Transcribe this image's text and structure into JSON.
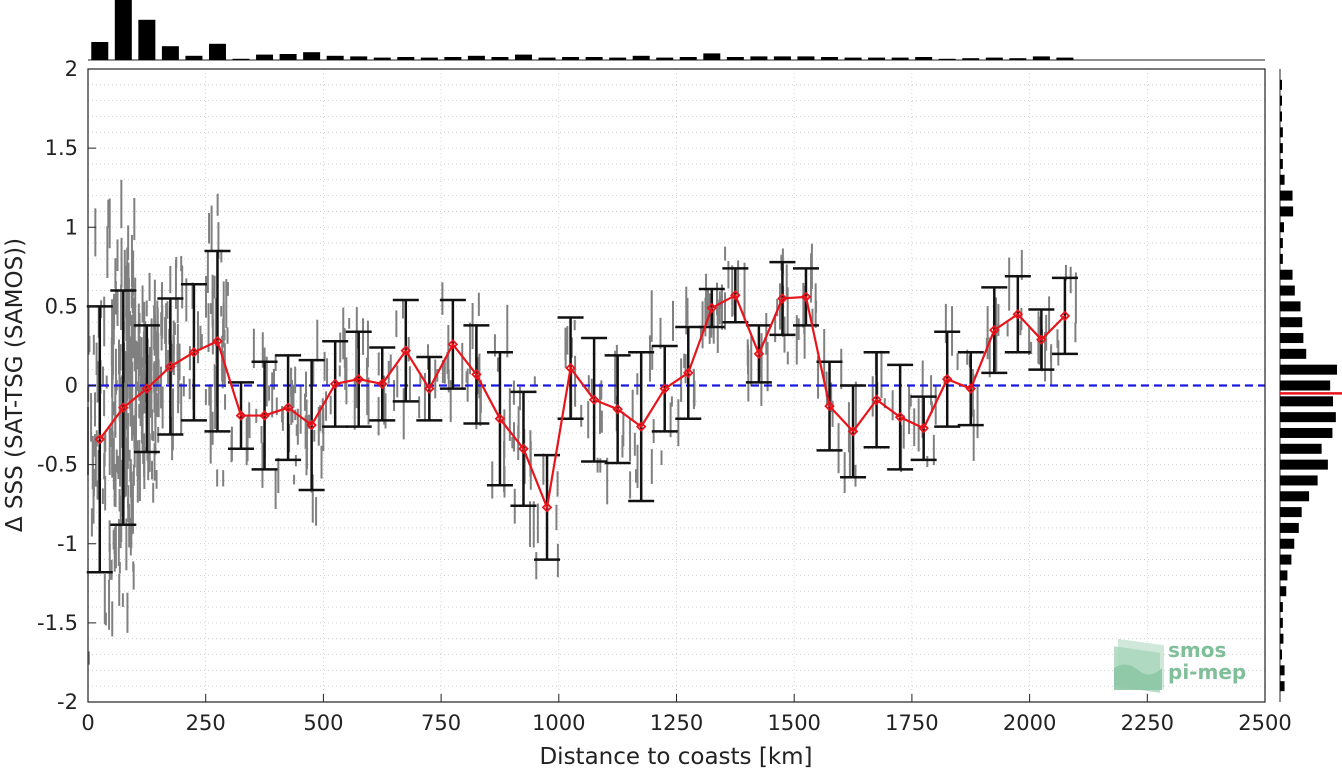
{
  "chart_data": {
    "type": "line",
    "xlabel": "Distance to coasts [km]",
    "ylabel": "Δ SSS (SAT-TSG (SAMOS))",
    "xlim": [
      0,
      2500
    ],
    "ylim": [
      -2,
      2
    ],
    "xticks": [
      0,
      250,
      500,
      750,
      1000,
      1250,
      1500,
      1750,
      2000,
      2250,
      2500
    ],
    "yticks": [
      -2,
      -1.5,
      -1,
      -0.5,
      0,
      0.5,
      1,
      1.5,
      2
    ],
    "reference_line": {
      "y": 0,
      "style": "dashed",
      "color": "#1a1adf"
    },
    "grid": "dotted",
    "series": [
      {
        "type": "mean_with_std",
        "color": "#e8141b",
        "x": [
          25,
          75,
          125,
          175,
          225,
          275,
          325,
          375,
          425,
          475,
          525,
          575,
          625,
          675,
          725,
          775,
          825,
          875,
          925,
          975,
          1025,
          1075,
          1125,
          1175,
          1225,
          1275,
          1325,
          1375,
          1425,
          1475,
          1525,
          1575,
          1625,
          1675,
          1725,
          1775,
          1825,
          1875,
          1925,
          1975,
          2025,
          2075
        ],
        "y": [
          -0.34,
          -0.14,
          -0.02,
          0.12,
          0.21,
          0.28,
          -0.19,
          -0.19,
          -0.14,
          -0.25,
          0.01,
          0.04,
          0.01,
          0.22,
          -0.02,
          0.26,
          0.07,
          -0.21,
          -0.4,
          -0.77,
          0.11,
          -0.09,
          -0.15,
          -0.26,
          -0.02,
          0.08,
          0.49,
          0.57,
          0.2,
          0.55,
          0.56,
          -0.13,
          -0.29,
          -0.09,
          -0.2,
          -0.27,
          0.04,
          -0.02,
          0.35,
          0.45,
          0.29,
          0.44
        ],
        "err": [
          0.84,
          0.74,
          0.4,
          0.43,
          0.43,
          0.57,
          0.21,
          0.34,
          0.33,
          0.41,
          0.27,
          0.3,
          0.23,
          0.32,
          0.2,
          0.28,
          0.31,
          0.42,
          0.36,
          0.33,
          0.32,
          0.39,
          0.34,
          0.47,
          0.27,
          0.29,
          0.12,
          0.17,
          0.18,
          0.23,
          0.18,
          0.28,
          0.29,
          0.3,
          0.33,
          0.2,
          0.3,
          0.23,
          0.27,
          0.24,
          0.19,
          0.24
        ]
      }
    ],
    "top_histogram": {
      "x": [
        25,
        75,
        125,
        175,
        225,
        275,
        325,
        375,
        425,
        475,
        525,
        575,
        625,
        675,
        725,
        775,
        825,
        875,
        925,
        975,
        1025,
        1075,
        1125,
        1175,
        1225,
        1275,
        1325,
        1375,
        1425,
        1475,
        1525,
        1575,
        1625,
        1675,
        1725,
        1775,
        1825,
        1875,
        1925,
        1975,
        2025,
        2075
      ],
      "values": [
        0.3,
        1.0,
        0.67,
        0.23,
        0.07,
        0.27,
        0.02,
        0.09,
        0.1,
        0.13,
        0.07,
        0.06,
        0.04,
        0.05,
        0.04,
        0.05,
        0.07,
        0.05,
        0.09,
        0.04,
        0.05,
        0.05,
        0.04,
        0.07,
        0.04,
        0.05,
        0.11,
        0.05,
        0.06,
        0.06,
        0.06,
        0.05,
        0.04,
        0.04,
        0.04,
        0.05,
        0.02,
        0.03,
        0.04,
        0.03,
        0.06,
        0.04
      ]
    },
    "right_histogram": {
      "y": [
        1.9,
        1.8,
        1.7,
        1.6,
        1.5,
        1.4,
        1.3,
        1.2,
        1.1,
        1.0,
        0.9,
        0.8,
        0.7,
        0.6,
        0.5,
        0.4,
        0.3,
        0.2,
        0.1,
        0.0,
        -0.1,
        -0.2,
        -0.3,
        -0.4,
        -0.5,
        -0.6,
        -0.7,
        -0.8,
        -0.9,
        -1.0,
        -1.1,
        -1.2,
        -1.3,
        -1.4,
        -1.5,
        -1.6,
        -1.7,
        -1.8,
        -1.9
      ],
      "values": [
        0.02,
        0.03,
        0.03,
        0.05,
        0.05,
        0.05,
        0.08,
        0.22,
        0.23,
        0.07,
        0.05,
        0.05,
        0.22,
        0.26,
        0.36,
        0.39,
        0.41,
        0.46,
        1.0,
        0.88,
        0.93,
        0.98,
        0.92,
        0.73,
        0.84,
        0.66,
        0.51,
        0.38,
        0.33,
        0.25,
        0.2,
        0.13,
        0.11,
        0.05,
        0.05,
        0.06,
        0.03,
        0.08,
        0.08
      ],
      "mean_marker": {
        "y": -0.05,
        "color": "#e8141b"
      }
    },
    "scatter_color": "#808080",
    "logo": {
      "line1": "smos",
      "line2": "pi-mep"
    }
  }
}
